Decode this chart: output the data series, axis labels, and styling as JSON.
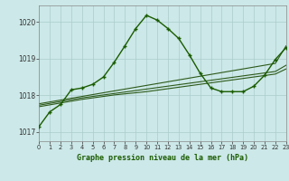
{
  "title": "Graphe pression niveau de la mer (hPa)",
  "background_color": "#cce8e8",
  "grid_color": "#aacccc",
  "line_color_main": "#1a5c00",
  "line_color_light": "#2d5a1a",
  "xlim": [
    0,
    23
  ],
  "ylim": [
    1016.75,
    1020.45
  ],
  "yticks": [
    1017,
    1018,
    1019,
    1020
  ],
  "xticks": [
    0,
    1,
    2,
    3,
    4,
    5,
    6,
    7,
    8,
    9,
    10,
    11,
    12,
    13,
    14,
    15,
    16,
    17,
    18,
    19,
    20,
    21,
    22,
    23
  ],
  "series_main": [
    1017.15,
    1017.55,
    1017.75,
    1018.15,
    1018.2,
    1018.3,
    1018.5,
    1018.9,
    1019.35,
    1019.82,
    1020.18,
    1020.05,
    1019.82,
    1019.55,
    1019.1,
    1018.6,
    1018.2,
    1018.1,
    1018.1,
    1018.1,
    1018.25,
    1018.55,
    1018.98,
    1019.3
  ],
  "series_line1": [
    1017.77,
    1017.82,
    1017.87,
    1017.92,
    1017.97,
    1018.02,
    1018.07,
    1018.12,
    1018.17,
    1018.22,
    1018.27,
    1018.32,
    1018.37,
    1018.42,
    1018.47,
    1018.52,
    1018.57,
    1018.62,
    1018.67,
    1018.72,
    1018.77,
    1018.82,
    1018.87,
    1019.35
  ],
  "series_line2": [
    1017.73,
    1017.78,
    1017.83,
    1017.88,
    1017.93,
    1017.97,
    1018.01,
    1018.05,
    1018.09,
    1018.13,
    1018.17,
    1018.21,
    1018.25,
    1018.29,
    1018.33,
    1018.37,
    1018.41,
    1018.45,
    1018.49,
    1018.53,
    1018.57,
    1018.61,
    1018.65,
    1018.82
  ],
  "series_line3": [
    1017.69,
    1017.74,
    1017.79,
    1017.84,
    1017.89,
    1017.93,
    1017.97,
    1018.01,
    1018.04,
    1018.07,
    1018.1,
    1018.14,
    1018.18,
    1018.22,
    1018.26,
    1018.3,
    1018.34,
    1018.38,
    1018.42,
    1018.46,
    1018.5,
    1018.54,
    1018.58,
    1018.72
  ]
}
